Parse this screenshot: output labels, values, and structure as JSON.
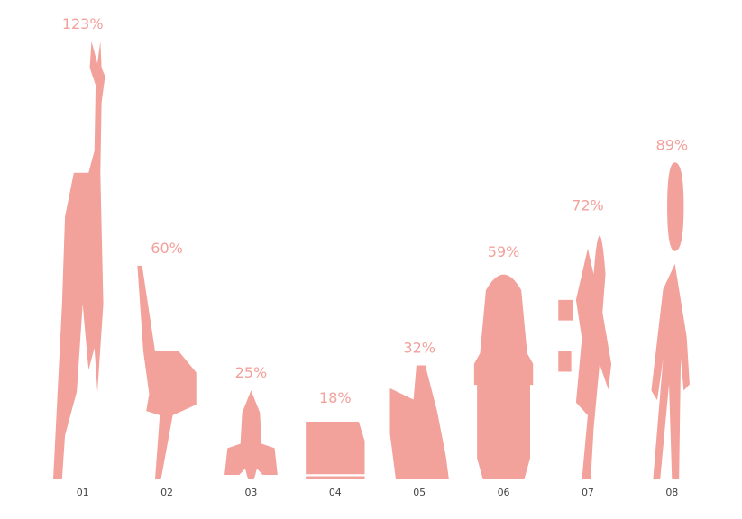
{
  "chart_data": {
    "type": "pictorial-bar",
    "categories": [
      "01",
      "02",
      "03",
      "04",
      "05",
      "06",
      "07",
      "08"
    ],
    "values": [
      123,
      60,
      25,
      18,
      32,
      59,
      72,
      89
    ],
    "value_labels": [
      "123%",
      "60%",
      "25%",
      "18%",
      "32%",
      "59%",
      "72%",
      "89%"
    ],
    "color": "#f2a19b",
    "ylim": [
      0,
      125
    ]
  }
}
